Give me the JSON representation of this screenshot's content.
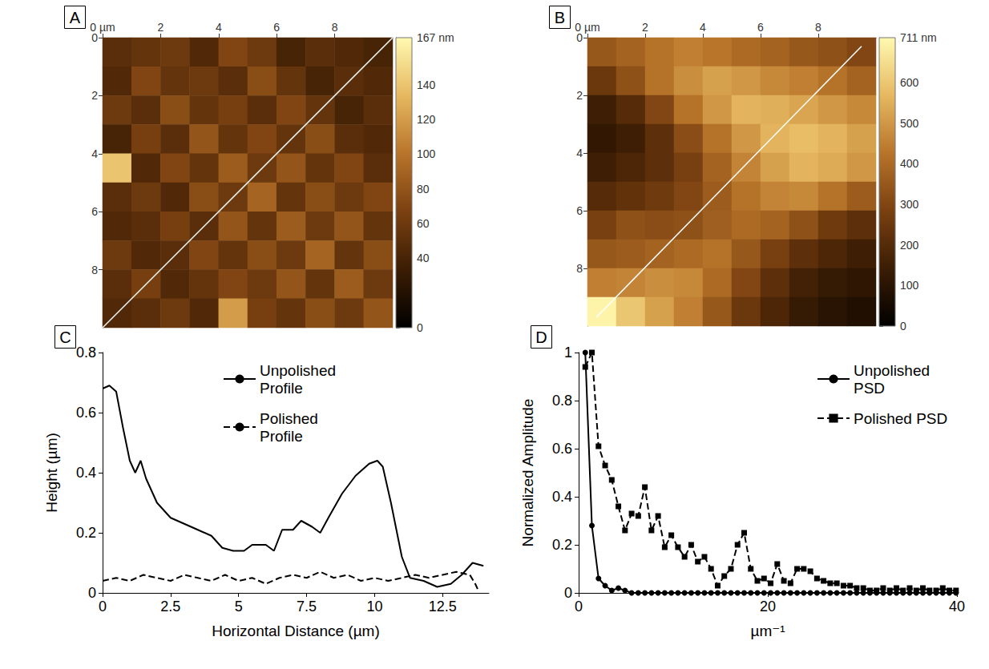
{
  "chart_data": [
    {
      "type": "heatmap",
      "panel_label": "A",
      "xlim": [
        0,
        10
      ],
      "ylim": [
        0,
        10
      ],
      "xticks": [
        {
          "value": 0,
          "label": "0 µm"
        },
        2,
        4,
        6,
        8
      ],
      "yticks": [
        0,
        2,
        4,
        6,
        8
      ],
      "cells": [
        [
          50,
          55,
          60,
          45,
          70,
          60,
          40,
          50,
          45,
          40
        ],
        [
          45,
          70,
          55,
          60,
          50,
          75,
          55,
          40,
          50,
          45
        ],
        [
          60,
          50,
          75,
          55,
          65,
          50,
          70,
          55,
          40,
          50
        ],
        [
          40,
          65,
          50,
          80,
          55,
          70,
          55,
          75,
          50,
          45
        ],
        [
          140,
          45,
          70,
          55,
          85,
          60,
          80,
          55,
          70,
          50
        ],
        [
          50,
          60,
          45,
          75,
          60,
          90,
          55,
          75,
          60,
          70
        ],
        [
          45,
          50,
          65,
          50,
          80,
          55,
          85,
          60,
          80,
          55
        ],
        [
          60,
          45,
          50,
          70,
          55,
          75,
          60,
          90,
          55,
          75
        ],
        [
          50,
          65,
          45,
          55,
          70,
          60,
          80,
          55,
          85,
          60
        ],
        [
          45,
          50,
          60,
          45,
          120,
          65,
          55,
          75,
          60,
          80
        ]
      ],
      "colorbar": {
        "range": [
          0,
          167
        ],
        "ticks": [
          0,
          40,
          60,
          80,
          100,
          120,
          140,
          {
            "value": 167,
            "label": "167 nm"
          }
        ]
      },
      "profile_line": [
        [
          0,
          10
        ],
        [
          10,
          0
        ]
      ]
    },
    {
      "type": "heatmap",
      "panel_label": "B",
      "xlim": [
        0,
        10
      ],
      "ylim": [
        0,
        10
      ],
      "xticks": [
        {
          "value": 0,
          "label": "0 µm"
        },
        2,
        4,
        6,
        8
      ],
      "yticks": [
        0,
        2,
        4,
        6,
        8
      ],
      "cells": [
        [
          350,
          380,
          420,
          450,
          430,
          400,
          380,
          350,
          330,
          300
        ],
        [
          250,
          330,
          420,
          480,
          520,
          500,
          470,
          450,
          420,
          380
        ],
        [
          150,
          200,
          300,
          420,
          500,
          560,
          550,
          530,
          500,
          470
        ],
        [
          120,
          150,
          220,
          320,
          420,
          500,
          560,
          580,
          560,
          520
        ],
        [
          150,
          180,
          220,
          280,
          380,
          460,
          520,
          560,
          540,
          500
        ],
        [
          200,
          230,
          260,
          300,
          360,
          420,
          460,
          470,
          420,
          360
        ],
        [
          280,
          330,
          320,
          330,
          370,
          400,
          380,
          330,
          260,
          220
        ],
        [
          350,
          360,
          380,
          400,
          420,
          350,
          280,
          220,
          180,
          150
        ],
        [
          450,
          460,
          480,
          470,
          400,
          300,
          220,
          160,
          130,
          110
        ],
        [
          700,
          600,
          520,
          450,
          350,
          250,
          180,
          130,
          100,
          80
        ]
      ],
      "colorbar": {
        "range": [
          0,
          711
        ],
        "ticks": [
          0,
          100,
          200,
          300,
          400,
          500,
          600,
          {
            "value": 711,
            "label": "711 nm"
          }
        ]
      },
      "profile_line": [
        [
          0.3,
          9.7
        ],
        [
          9.5,
          0.3
        ]
      ]
    },
    {
      "type": "line",
      "panel_label": "C",
      "x_label": "Horizontal Distance (µm)",
      "y_label": "Height (µm)",
      "xlim": [
        0,
        14.2
      ],
      "xticks": [
        0,
        2.5,
        5,
        7.5,
        10,
        12.5
      ],
      "ylim": [
        0,
        0.8
      ],
      "yticks": [
        0,
        0.2,
        0.4,
        0.6,
        0.8
      ],
      "legend": "top",
      "series": [
        {
          "name": "Unpolished Profile",
          "color": "#000000",
          "line_style": "solid",
          "x": [
            0,
            0.25,
            0.5,
            0.75,
            1.0,
            1.2,
            1.4,
            1.6,
            2.0,
            2.5,
            3.0,
            3.5,
            4.0,
            4.4,
            4.8,
            5.2,
            5.5,
            6.0,
            6.3,
            6.6,
            7.0,
            7.3,
            7.7,
            8.0,
            8.3,
            8.8,
            9.3,
            9.8,
            10.1,
            10.3,
            10.6,
            11.0,
            11.3,
            11.8,
            12.3,
            12.8,
            13.2,
            13.6,
            14.0
          ],
          "values": [
            0.68,
            0.69,
            0.67,
            0.55,
            0.44,
            0.4,
            0.44,
            0.38,
            0.3,
            0.25,
            0.23,
            0.21,
            0.19,
            0.15,
            0.14,
            0.14,
            0.16,
            0.16,
            0.14,
            0.21,
            0.21,
            0.24,
            0.22,
            0.2,
            0.25,
            0.33,
            0.39,
            0.43,
            0.44,
            0.42,
            0.3,
            0.12,
            0.05,
            0.04,
            0.02,
            0.03,
            0.06,
            0.1,
            0.09
          ]
        },
        {
          "name": "Polished Profile",
          "color": "#000000",
          "line_style": "dashed",
          "x": [
            0,
            0.5,
            1.0,
            1.5,
            2.0,
            2.5,
            3.0,
            3.5,
            4.0,
            4.5,
            5.0,
            5.5,
            6.0,
            6.5,
            7.0,
            7.5,
            8.0,
            8.5,
            9.0,
            9.5,
            10.0,
            10.5,
            11.0,
            11.5,
            12.0,
            12.5,
            13.0,
            13.5,
            13.7,
            13.8
          ],
          "values": [
            0.04,
            0.05,
            0.04,
            0.06,
            0.05,
            0.04,
            0.06,
            0.05,
            0.04,
            0.06,
            0.04,
            0.05,
            0.03,
            0.05,
            0.06,
            0.05,
            0.07,
            0.05,
            0.06,
            0.04,
            0.05,
            0.04,
            0.05,
            0.06,
            0.05,
            0.06,
            0.07,
            0.06,
            0.03,
            0.01
          ]
        }
      ]
    },
    {
      "type": "line",
      "panel_label": "D",
      "x_label": "µm⁻¹",
      "y_label": "Normalized Amplitude",
      "xlim": [
        0,
        40
      ],
      "xticks": [
        0,
        20,
        40
      ],
      "ylim": [
        0,
        1
      ],
      "yticks": [
        0,
        0.2,
        0.4,
        0.6,
        0.8,
        1
      ],
      "legend": "top-right",
      "x": [
        0.7,
        1.4,
        2.1,
        2.8,
        3.5,
        4.2,
        4.9,
        5.6,
        6.3,
        7.0,
        7.7,
        8.4,
        9.1,
        9.8,
        10.5,
        11.2,
        11.9,
        12.6,
        13.3,
        14.0,
        14.7,
        15.4,
        16.1,
        16.8,
        17.5,
        18.2,
        18.9,
        19.6,
        20.3,
        21.0,
        21.7,
        22.4,
        23.1,
        23.8,
        24.5,
        25.2,
        25.9,
        26.6,
        27.3,
        28.0,
        28.7,
        29.4,
        30.1,
        30.8,
        31.5,
        32.2,
        32.9,
        33.6,
        34.3,
        35.0,
        35.7,
        36.4,
        37.1,
        37.8,
        38.5,
        39.2,
        39.9
      ],
      "series": [
        {
          "name": "Unpolished PSD",
          "color": "#000000",
          "line_style": "solid",
          "marker": "circle",
          "values": [
            1.0,
            0.28,
            0.06,
            0.03,
            0.01,
            0.02,
            0.01,
            0,
            0,
            0,
            0,
            0,
            0,
            0,
            0,
            0,
            0,
            0,
            0,
            0,
            0,
            0,
            0,
            0,
            0,
            0,
            0,
            0,
            0,
            0,
            0,
            0,
            0,
            0,
            0,
            0,
            0,
            0,
            0,
            0,
            0,
            0,
            0,
            0,
            0,
            0,
            0,
            0,
            0,
            0,
            0,
            0,
            0,
            0,
            0,
            0,
            0
          ]
        },
        {
          "name": "Polished PSD",
          "color": "#000000",
          "line_style": "dashed",
          "marker": "square",
          "values": [
            0.94,
            1.0,
            0.61,
            0.53,
            0.47,
            0.36,
            0.26,
            0.33,
            0.32,
            0.44,
            0.26,
            0.32,
            0.19,
            0.24,
            0.19,
            0.15,
            0.2,
            0.13,
            0.15,
            0.1,
            0.03,
            0.07,
            0.1,
            0.2,
            0.25,
            0.1,
            0.05,
            0.06,
            0.04,
            0.12,
            0.05,
            0.04,
            0.1,
            0.1,
            0.09,
            0.06,
            0.05,
            0.04,
            0.04,
            0.03,
            0.03,
            0.02,
            0.02,
            0.01,
            0.01,
            0.02,
            0.01,
            0.02,
            0.01,
            0.02,
            0.01,
            0.02,
            0.01,
            0.01,
            0.02,
            0.01,
            0.01
          ]
        }
      ]
    }
  ]
}
